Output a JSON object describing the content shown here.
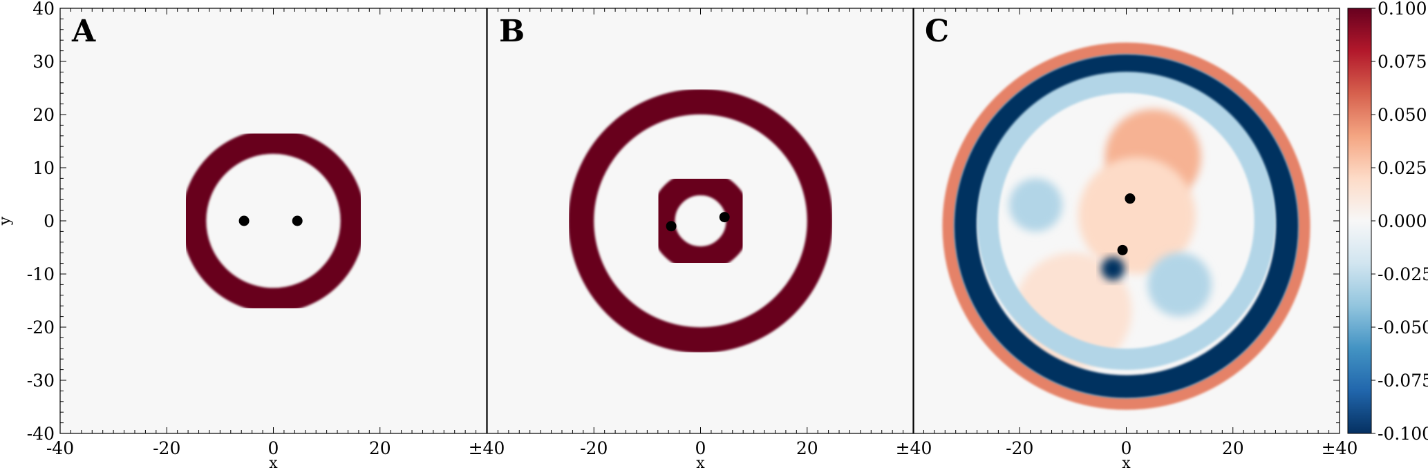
{
  "chart_data": {
    "type": "heatmap",
    "title": "",
    "xlabel": "x",
    "ylabel": "y",
    "xlim": [
      -40,
      40
    ],
    "ylim": [
      -40,
      40
    ],
    "grid": false,
    "panels": [
      {
        "label": "A",
        "rings": [
          {
            "center": [
              0,
              0
            ],
            "inner_radius": 12.6,
            "outer_radius": 17.2,
            "value": 0.1
          }
        ],
        "blobs": [],
        "points": [
          {
            "x": -5.5,
            "y": 0
          },
          {
            "x": 4.5,
            "y": 0
          }
        ]
      },
      {
        "label": "B",
        "rings": [
          {
            "center": [
              0,
              0
            ],
            "inner_radius": 20.0,
            "outer_radius": 24.8,
            "value": 0.1
          },
          {
            "center": [
              0,
              0
            ],
            "inner_radius": 4.8,
            "outer_radius": 9.5,
            "value": 0.1
          }
        ],
        "blobs": [],
        "points": [
          {
            "x": -5.5,
            "y": -1.0
          },
          {
            "x": 4.5,
            "y": 0.7
          }
        ]
      },
      {
        "label": "C",
        "rings": [
          {
            "center": [
              0,
              -1
            ],
            "inner_radius": 32.3,
            "outer_radius": 34.5,
            "value": 0.05
          },
          {
            "center": [
              0,
              -1
            ],
            "inner_radius": 28.0,
            "outer_radius": 32.3,
            "value": -0.1
          },
          {
            "center": [
              0,
              0
            ],
            "inner_radius": 24.0,
            "outer_radius": 28.0,
            "value": -0.03
          }
        ],
        "blobs": [
          {
            "x": 5,
            "y": 12,
            "r": 9,
            "value": 0.035
          },
          {
            "x": 2,
            "y": 1,
            "r": 11,
            "value": 0.02
          },
          {
            "x": -10,
            "y": -17,
            "r": 11,
            "value": 0.015
          },
          {
            "x": -17,
            "y": 3,
            "r": 5,
            "value": -0.03
          },
          {
            "x": 10,
            "y": -12,
            "r": 6,
            "value": -0.03
          },
          {
            "x": -2.5,
            "y": -9,
            "r": 2.2,
            "value": -0.1
          }
        ],
        "points": [
          {
            "x": 0.7,
            "y": 4.2
          },
          {
            "x": -0.7,
            "y": -5.5
          }
        ]
      }
    ],
    "colorbar": {
      "colormap": "RdBu_r",
      "min": -0.1,
      "max": 0.1,
      "ticks": [
        "0.100",
        "0.075",
        "0.050",
        "0.025",
        "0.000",
        "-0.025",
        "-0.050",
        "-0.075",
        "-0.100"
      ]
    },
    "x_ticks": [
      "-40",
      "-20",
      "0",
      "20",
      "±40"
    ],
    "y_ticks": [
      "40",
      "30",
      "20",
      "10",
      "0",
      "-10",
      "-20",
      "-30",
      "-40"
    ]
  }
}
